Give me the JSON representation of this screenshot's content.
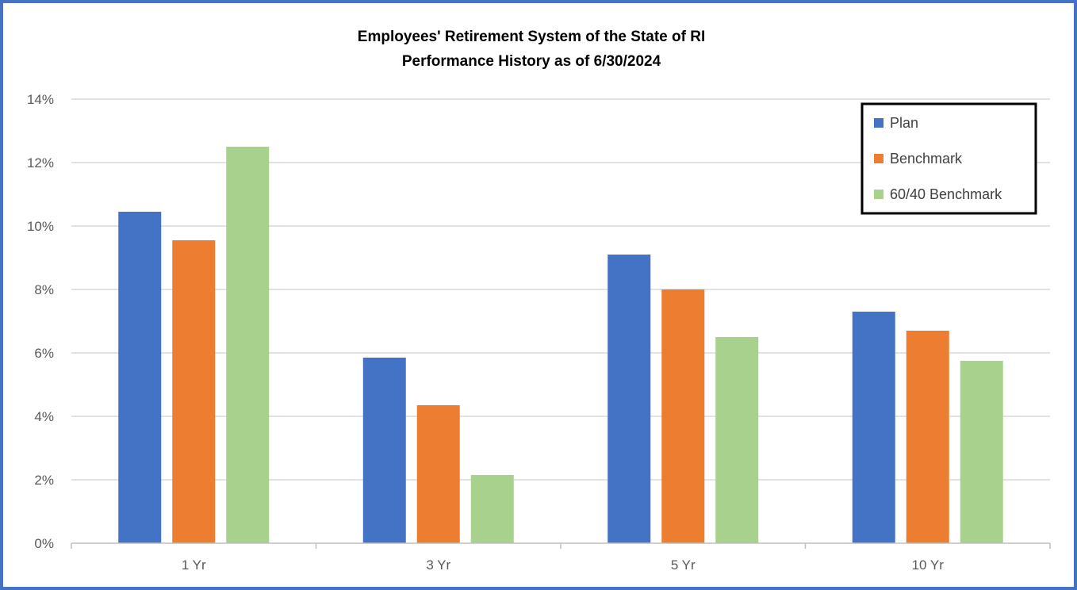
{
  "chart_data": {
    "type": "bar",
    "title": "Employees' Retirement System of the State of RI",
    "subtitle": "Performance History as of 6/30/2024",
    "categories": [
      "1 Yr",
      "3 Yr",
      "5 Yr",
      "10 Yr"
    ],
    "series": [
      {
        "name": "Plan",
        "color": "#4472C4",
        "values": [
          10.45,
          5.85,
          9.1,
          7.3
        ]
      },
      {
        "name": "Benchmark",
        "color": "#ED7D31",
        "values": [
          9.55,
          4.35,
          8.0,
          6.7
        ]
      },
      {
        "name": "60/40 Benchmark",
        "color": "#A9D18E",
        "values": [
          12.5,
          2.15,
          6.5,
          5.75
        ]
      }
    ],
    "ylim": [
      0,
      14
    ],
    "yticks": [
      "0%",
      "2%",
      "4%",
      "6%",
      "8%",
      "10%",
      "12%",
      "14%"
    ],
    "y_tick_values": [
      0,
      2,
      4,
      6,
      8,
      10,
      12,
      14
    ],
    "grid": true,
    "legend": "top-right"
  }
}
